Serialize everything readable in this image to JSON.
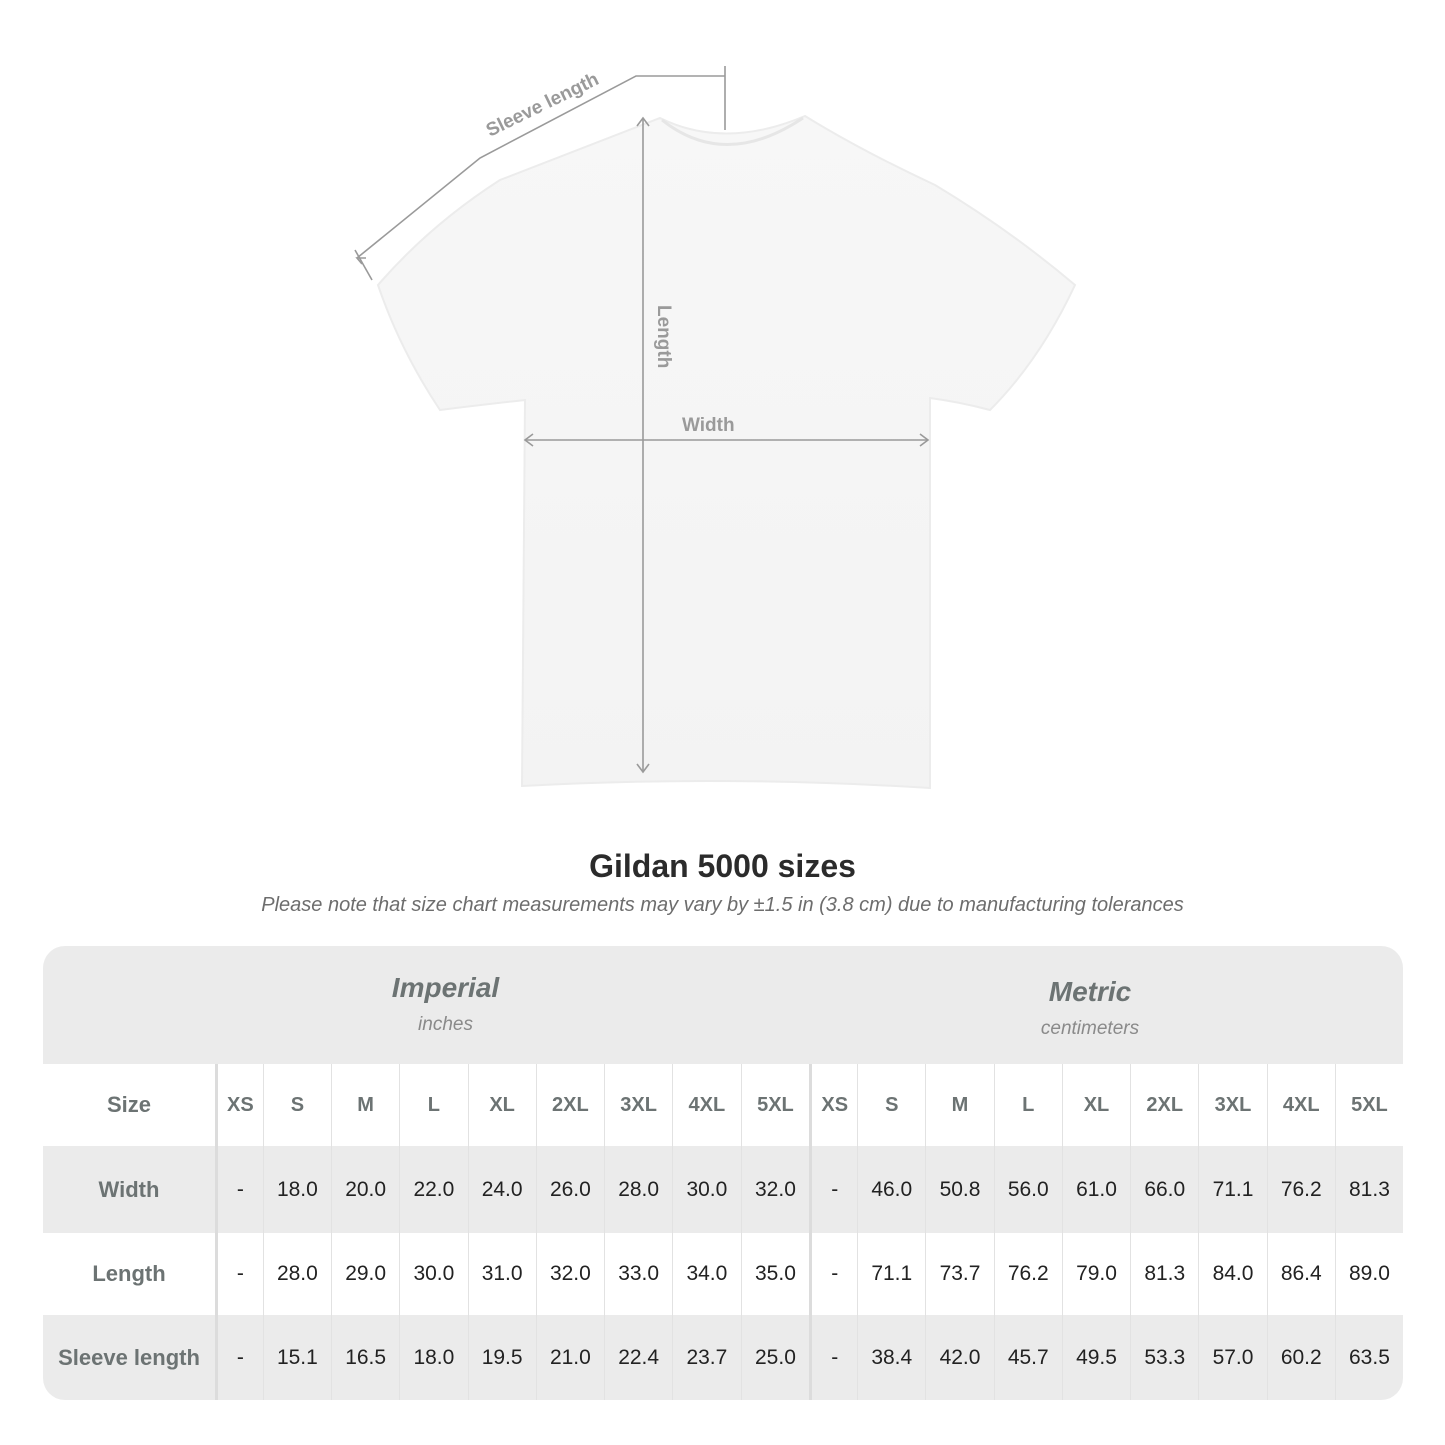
{
  "diagram": {
    "labels": {
      "sleeve": "Sleeve length",
      "length": "Length",
      "width": "Width"
    },
    "colors": {
      "measure_line": "#9a9a9a",
      "shirt": "#ffffff"
    }
  },
  "title": "Gildan 5000 sizes",
  "note": "Please note that size chart measurements may vary by ±1.5 in (3.8 cm) due to manufacturing tolerances",
  "table": {
    "imperial": {
      "title": "Imperial",
      "unit": "inches"
    },
    "metric": {
      "title": "Metric",
      "unit": "centimeters"
    },
    "size_label": "Size",
    "sizes": [
      "XS",
      "S",
      "M",
      "L",
      "XL",
      "2XL",
      "3XL",
      "4XL",
      "5XL"
    ],
    "rows": [
      {
        "label": "Width",
        "imperial": [
          "-",
          "18.0",
          "20.0",
          "22.0",
          "24.0",
          "26.0",
          "28.0",
          "30.0",
          "32.0"
        ],
        "metric": [
          "-",
          "46.0",
          "50.8",
          "56.0",
          "61.0",
          "66.0",
          "71.1",
          "76.2",
          "81.3"
        ]
      },
      {
        "label": "Length",
        "imperial": [
          "-",
          "28.0",
          "29.0",
          "30.0",
          "31.0",
          "32.0",
          "33.0",
          "34.0",
          "35.0"
        ],
        "metric": [
          "-",
          "71.1",
          "73.7",
          "76.2",
          "79.0",
          "81.3",
          "84.0",
          "86.4",
          "89.0"
        ]
      },
      {
        "label": "Sleeve length",
        "imperial": [
          "-",
          "15.1",
          "16.5",
          "18.0",
          "19.5",
          "21.0",
          "22.4",
          "23.7",
          "25.0"
        ],
        "metric": [
          "-",
          "38.4",
          "42.0",
          "45.7",
          "49.5",
          "53.3",
          "57.0",
          "60.2",
          "63.5"
        ]
      }
    ]
  }
}
